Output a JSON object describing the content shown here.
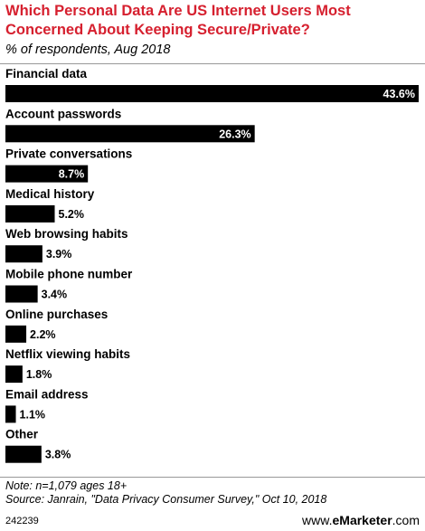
{
  "header": {
    "title": "Which Personal Data Are US Internet Users Most Concerned About Keeping Secure/Private?",
    "subtitle": "% of respondents, Aug 2018"
  },
  "chart_data": {
    "type": "bar",
    "orientation": "horizontal",
    "categories": [
      "Financial data",
      "Account passwords",
      "Private conversations",
      "Medical history",
      "Web browsing habits",
      "Mobile phone number",
      "Online purchases",
      "Netflix viewing habits",
      "Email address",
      "Other"
    ],
    "values": [
      43.6,
      26.3,
      8.7,
      5.2,
      3.9,
      3.4,
      2.2,
      1.8,
      1.1,
      3.8
    ],
    "value_labels": [
      "43.6%",
      "26.3%",
      "8.7%",
      "5.2%",
      "3.9%",
      "3.4%",
      "2.2%",
      "1.8%",
      "1.1%",
      "3.8%"
    ],
    "bar_color": "#000000",
    "xlim": [
      0,
      43.6
    ]
  },
  "footer": {
    "note": "Note: n=1,079 ages 18+",
    "source": "Source: Janrain, \"Data Privacy Consumer Survey,\" Oct 10, 2018",
    "id": "242239",
    "brand_prefix": "www.",
    "brand_name": "eMarketer",
    "brand_suffix": ".com"
  }
}
